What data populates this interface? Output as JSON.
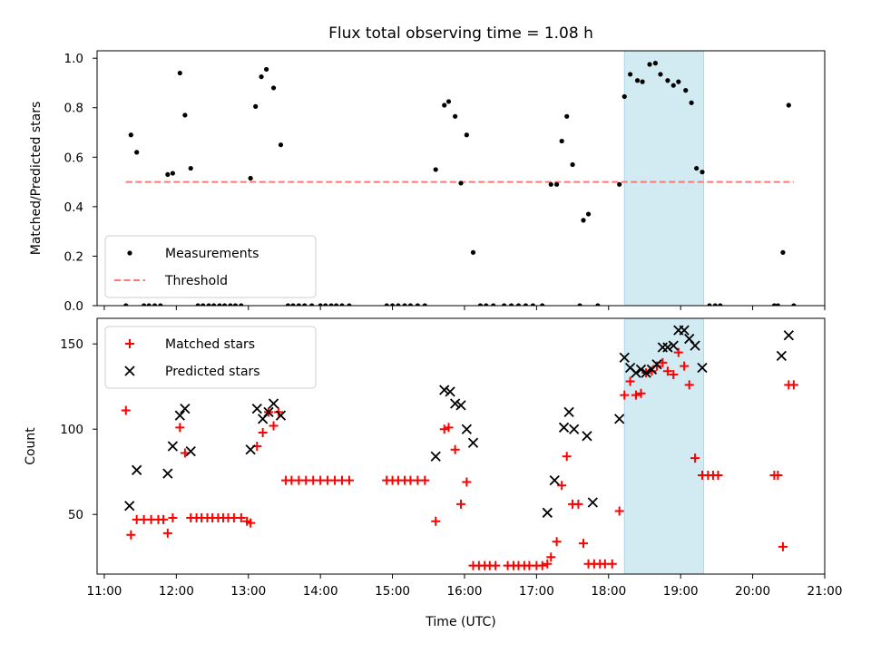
{
  "chart_data": {
    "type": "scatter",
    "title": "Flux total observing time = 1.08 h",
    "xlabel": "Time (UTC)",
    "xlim": [
      10.9,
      21.0
    ],
    "xticks": [
      "11:00",
      "12:00",
      "13:00",
      "14:00",
      "15:00",
      "16:00",
      "17:00",
      "18:00",
      "19:00",
      "20:00",
      "21:00"
    ],
    "highlight_span": [
      18.22,
      19.32
    ],
    "highlight_color": "#add8e6",
    "panels": [
      {
        "ylabel": "Matched/Predicted stars",
        "ylim": [
          0,
          1.03
        ],
        "yticks": [
          "0.0",
          "0.2",
          "0.4",
          "0.6",
          "0.8",
          "1.0"
        ],
        "legend_position": "lower-left",
        "threshold": {
          "name": "Threshold",
          "y": 0.5,
          "x_range": [
            11.3,
            20.57
          ],
          "color": "#ff7777"
        },
        "series": [
          {
            "name": "Measurements",
            "color": "#000000",
            "marker": "dot",
            "points": [
              [
                11.3,
                0.0
              ],
              [
                11.37,
                0.69
              ],
              [
                11.45,
                0.62
              ],
              [
                11.55,
                0.0
              ],
              [
                11.62,
                0.0
              ],
              [
                11.7,
                0.0
              ],
              [
                11.78,
                0.0
              ],
              [
                11.88,
                0.53
              ],
              [
                11.95,
                0.535
              ],
              [
                12.05,
                0.94
              ],
              [
                12.12,
                0.77
              ],
              [
                12.2,
                0.555
              ],
              [
                12.3,
                0.0
              ],
              [
                12.37,
                0.0
              ],
              [
                12.45,
                0.0
              ],
              [
                12.52,
                0.0
              ],
              [
                12.6,
                0.0
              ],
              [
                12.67,
                0.0
              ],
              [
                12.75,
                0.0
              ],
              [
                12.82,
                0.0
              ],
              [
                12.9,
                0.0
              ],
              [
                13.03,
                0.515
              ],
              [
                13.1,
                0.805
              ],
              [
                13.18,
                0.925
              ],
              [
                13.25,
                0.955
              ],
              [
                13.35,
                0.88
              ],
              [
                13.45,
                0.65
              ],
              [
                13.55,
                0.0
              ],
              [
                13.62,
                0.0
              ],
              [
                13.7,
                0.0
              ],
              [
                13.78,
                0.0
              ],
              [
                13.88,
                0.0
              ],
              [
                14.0,
                0.0
              ],
              [
                14.07,
                0.0
              ],
              [
                14.15,
                0.0
              ],
              [
                14.22,
                0.0
              ],
              [
                14.3,
                0.0
              ],
              [
                14.4,
                0.0
              ],
              [
                14.92,
                0.0
              ],
              [
                15.0,
                0.0
              ],
              [
                15.08,
                0.0
              ],
              [
                15.17,
                0.0
              ],
              [
                15.25,
                0.0
              ],
              [
                15.35,
                0.0
              ],
              [
                15.45,
                0.0
              ],
              [
                15.6,
                0.55
              ],
              [
                15.72,
                0.81
              ],
              [
                15.78,
                0.825
              ],
              [
                15.87,
                0.765
              ],
              [
                15.95,
                0.495
              ],
              [
                16.03,
                0.69
              ],
              [
                16.12,
                0.215
              ],
              [
                16.22,
                0.0
              ],
              [
                16.3,
                0.0
              ],
              [
                16.4,
                0.0
              ],
              [
                16.55,
                0.0
              ],
              [
                16.65,
                0.0
              ],
              [
                16.75,
                0.0
              ],
              [
                16.85,
                0.0
              ],
              [
                16.95,
                0.0
              ],
              [
                17.08,
                0.0
              ],
              [
                17.2,
                0.49
              ],
              [
                17.28,
                0.49
              ],
              [
                17.35,
                0.665
              ],
              [
                17.42,
                0.765
              ],
              [
                17.5,
                0.57
              ],
              [
                17.6,
                0.0
              ],
              [
                17.65,
                0.345
              ],
              [
                17.72,
                0.37
              ],
              [
                17.85,
                0.0
              ],
              [
                18.15,
                0.49
              ],
              [
                18.22,
                0.845
              ],
              [
                18.3,
                0.935
              ],
              [
                18.4,
                0.91
              ],
              [
                18.47,
                0.905
              ],
              [
                18.57,
                0.975
              ],
              [
                18.65,
                0.98
              ],
              [
                18.72,
                0.935
              ],
              [
                18.82,
                0.91
              ],
              [
                18.9,
                0.89
              ],
              [
                18.97,
                0.905
              ],
              [
                19.07,
                0.87
              ],
              [
                19.15,
                0.82
              ],
              [
                19.22,
                0.555
              ],
              [
                19.3,
                0.54
              ],
              [
                19.4,
                0.0
              ],
              [
                19.48,
                0.0
              ],
              [
                19.55,
                0.0
              ],
              [
                20.3,
                0.0
              ],
              [
                20.35,
                0.0
              ],
              [
                20.42,
                0.215
              ],
              [
                20.5,
                0.81
              ],
              [
                20.57,
                0.0
              ]
            ]
          }
        ]
      },
      {
        "ylabel": "Count",
        "ylim": [
          15,
          165
        ],
        "yticks": [
          "50",
          "100",
          "150"
        ],
        "legend_position": "upper-left",
        "series": [
          {
            "name": "Matched stars",
            "color": "#ff0000",
            "marker": "plus",
            "points": [
              [
                11.3,
                111
              ],
              [
                11.37,
                38
              ],
              [
                11.45,
                47
              ],
              [
                11.55,
                47
              ],
              [
                11.65,
                47
              ],
              [
                11.75,
                47
              ],
              [
                11.82,
                47
              ],
              [
                11.88,
                39
              ],
              [
                11.95,
                48
              ],
              [
                12.05,
                101
              ],
              [
                12.12,
                86
              ],
              [
                12.2,
                48
              ],
              [
                12.28,
                48
              ],
              [
                12.35,
                48
              ],
              [
                12.43,
                48
              ],
              [
                12.5,
                48
              ],
              [
                12.58,
                48
              ],
              [
                12.65,
                48
              ],
              [
                12.72,
                48
              ],
              [
                12.8,
                48
              ],
              [
                12.9,
                48
              ],
              [
                12.98,
                46
              ],
              [
                13.03,
                45
              ],
              [
                13.12,
                90
              ],
              [
                13.2,
                98
              ],
              [
                13.28,
                110
              ],
              [
                13.35,
                102
              ],
              [
                13.42,
                110
              ],
              [
                13.52,
                70
              ],
              [
                13.6,
                70
              ],
              [
                13.7,
                70
              ],
              [
                13.8,
                70
              ],
              [
                13.9,
                70
              ],
              [
                14.0,
                70
              ],
              [
                14.1,
                70
              ],
              [
                14.2,
                70
              ],
              [
                14.3,
                70
              ],
              [
                14.4,
                70
              ],
              [
                14.92,
                70
              ],
              [
                15.0,
                70
              ],
              [
                15.08,
                70
              ],
              [
                15.17,
                70
              ],
              [
                15.25,
                70
              ],
              [
                15.35,
                70
              ],
              [
                15.45,
                70
              ],
              [
                15.6,
                46
              ],
              [
                15.72,
                100
              ],
              [
                15.78,
                101
              ],
              [
                15.87,
                88
              ],
              [
                15.95,
                56
              ],
              [
                16.03,
                69
              ],
              [
                16.12,
                20
              ],
              [
                16.2,
                20
              ],
              [
                16.28,
                20
              ],
              [
                16.35,
                20
              ],
              [
                16.43,
                20
              ],
              [
                16.6,
                20
              ],
              [
                16.68,
                20
              ],
              [
                16.75,
                20
              ],
              [
                16.83,
                20
              ],
              [
                16.9,
                20
              ],
              [
                17.0,
                20
              ],
              [
                17.08,
                20
              ],
              [
                17.15,
                21
              ],
              [
                17.2,
                25
              ],
              [
                17.28,
                34
              ],
              [
                17.35,
                67
              ],
              [
                17.42,
                84
              ],
              [
                17.5,
                56
              ],
              [
                17.58,
                56
              ],
              [
                17.65,
                33
              ],
              [
                17.72,
                21
              ],
              [
                17.8,
                21
              ],
              [
                17.88,
                21
              ],
              [
                17.95,
                21
              ],
              [
                18.05,
                21
              ],
              [
                18.15,
                52
              ],
              [
                18.22,
                120
              ],
              [
                18.3,
                128
              ],
              [
                18.38,
                120
              ],
              [
                18.45,
                121
              ],
              [
                18.52,
                133
              ],
              [
                18.6,
                134
              ],
              [
                18.67,
                137
              ],
              [
                18.75,
                139
              ],
              [
                18.82,
                134
              ],
              [
                18.9,
                132
              ],
              [
                18.97,
                145
              ],
              [
                19.05,
                137
              ],
              [
                19.12,
                126
              ],
              [
                19.2,
                83
              ],
              [
                19.3,
                73
              ],
              [
                19.38,
                73
              ],
              [
                19.45,
                73
              ],
              [
                19.52,
                73
              ],
              [
                20.3,
                73
              ],
              [
                20.35,
                73
              ],
              [
                20.42,
                31
              ],
              [
                20.5,
                126
              ],
              [
                20.57,
                126
              ]
            ]
          },
          {
            "name": "Predicted stars",
            "color": "#000000",
            "marker": "cross",
            "points": [
              [
                11.35,
                55
              ],
              [
                11.45,
                76
              ],
              [
                11.88,
                74
              ],
              [
                11.95,
                90
              ],
              [
                12.05,
                108
              ],
              [
                12.12,
                112
              ],
              [
                12.2,
                87
              ],
              [
                13.03,
                88
              ],
              [
                13.12,
                112
              ],
              [
                13.2,
                106
              ],
              [
                13.28,
                110
              ],
              [
                13.35,
                115
              ],
              [
                13.45,
                108
              ],
              [
                15.6,
                84
              ],
              [
                15.72,
                123
              ],
              [
                15.8,
                122
              ],
              [
                15.87,
                115
              ],
              [
                15.95,
                114
              ],
              [
                16.03,
                100
              ],
              [
                16.12,
                92
              ],
              [
                17.15,
                51
              ],
              [
                17.25,
                70
              ],
              [
                17.38,
                101
              ],
              [
                17.45,
                110
              ],
              [
                17.52,
                100
              ],
              [
                17.7,
                96
              ],
              [
                17.78,
                57
              ],
              [
                18.15,
                106
              ],
              [
                18.22,
                142
              ],
              [
                18.3,
                136
              ],
              [
                18.38,
                133
              ],
              [
                18.45,
                135
              ],
              [
                18.52,
                133
              ],
              [
                18.6,
                135
              ],
              [
                18.67,
                138
              ],
              [
                18.75,
                148
              ],
              [
                18.82,
                148
              ],
              [
                18.9,
                149
              ],
              [
                18.97,
                158
              ],
              [
                19.05,
                158
              ],
              [
                19.12,
                153
              ],
              [
                19.2,
                149
              ],
              [
                19.3,
                136
              ],
              [
                20.4,
                143
              ],
              [
                20.5,
                155
              ]
            ]
          }
        ]
      }
    ]
  }
}
